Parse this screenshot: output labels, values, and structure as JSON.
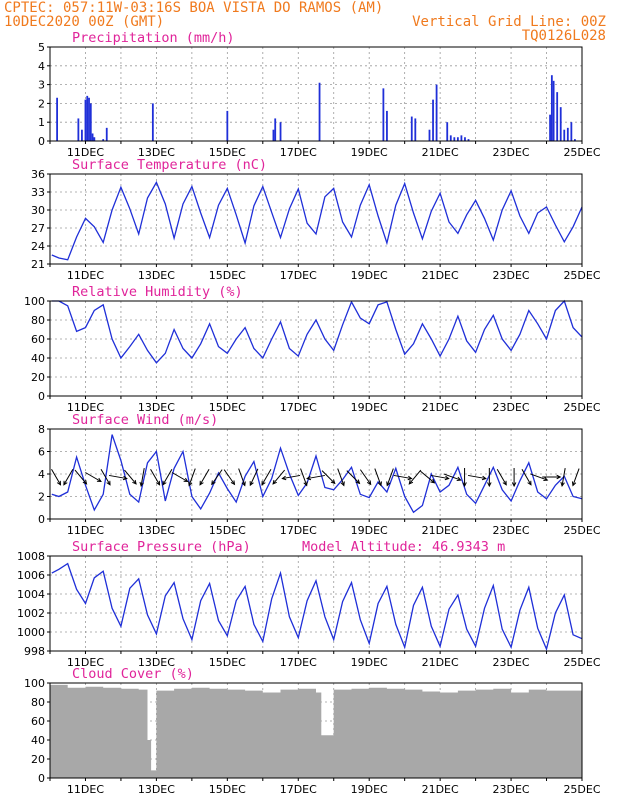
{
  "header": {
    "line1": "CPTEC:  057:11W-03:16S  BOA VISTA DO RAMOS (AM)",
    "line2_left": "10DEC2020 00Z (GMT)",
    "line2_right": "Vertical Grid Line: 00Z",
    "line3_right": "TQ0126L028"
  },
  "colors": {
    "header": "#f07a1e",
    "title": "#e0249a",
    "series": "#1f2fd8",
    "cloud": "#a8a8a8"
  },
  "chart_data": [
    {
      "type": "bar",
      "title": "Precipitation (mm/h)",
      "ylim": [
        0,
        5
      ],
      "yticks": [
        0,
        1,
        2,
        3,
        4,
        5
      ],
      "xticks": [
        "11DEC",
        "13DEC",
        "15DEC",
        "17DEC",
        "19DEC",
        "21DEC",
        "23DEC",
        "25DEC"
      ],
      "x": [
        0.2,
        0.8,
        0.9,
        1.0,
        1.05,
        1.1,
        1.15,
        1.2,
        1.25,
        1.5,
        1.6,
        2.9,
        5.0,
        6.3,
        6.35,
        6.5,
        7.6,
        9.4,
        9.5,
        10.2,
        10.3,
        10.7,
        10.8,
        10.9,
        11.2,
        11.3,
        11.4,
        11.5,
        11.6,
        11.7,
        11.8,
        14.1,
        14.15,
        14.2,
        14.3,
        14.4,
        14.5,
        14.6,
        14.7,
        14.8,
        16.6,
        17.5,
        17.7,
        17.8,
        17.9,
        18.0,
        18.3,
        18.4,
        19.0,
        19.1,
        19.2,
        19.25,
        19.3,
        19.4,
        19.6,
        19.7,
        19.9,
        20.0,
        20.1,
        20.2,
        20.3,
        20.4,
        20.5,
        20.6,
        20.7,
        20.8
      ],
      "values": [
        2.3,
        1.2,
        0.6,
        2.2,
        2.4,
        2.3,
        2.0,
        0.4,
        0.2,
        0.1,
        0.7,
        2.0,
        1.6,
        0.6,
        1.2,
        1.0,
        3.1,
        2.8,
        1.6,
        1.3,
        1.2,
        0.6,
        2.2,
        3.0,
        1.0,
        0.3,
        0.2,
        0.2,
        0.3,
        0.2,
        0.1,
        1.4,
        3.5,
        3.2,
        2.6,
        1.8,
        0.6,
        0.7,
        1.0,
        0.1,
        0.4,
        1.2,
        1.0,
        0.1,
        3.0,
        1.7,
        1.0,
        1.0,
        1.2,
        0.6,
        0.8,
        2.6,
        0.6,
        0.4,
        2.9,
        0.9,
        1.1,
        1.1,
        1.8,
        1.0,
        1.5,
        0.5,
        1.8,
        1.4,
        1.3,
        0.5
      ]
    },
    {
      "type": "line",
      "title": "Surface Temperature (nC)",
      "ylim": [
        21,
        36
      ],
      "yticks": [
        21,
        24,
        27,
        30,
        33,
        36
      ],
      "xticks": [
        "11DEC",
        "13DEC",
        "15DEC",
        "17DEC",
        "19DEC",
        "21DEC",
        "23DEC",
        "25DEC"
      ],
      "x": [
        0.05,
        0.25,
        0.5,
        0.75,
        1.0,
        1.25,
        1.5,
        1.75,
        2.0,
        2.25,
        2.5,
        2.75,
        3.0,
        3.25,
        3.5,
        3.75,
        4.0,
        4.25,
        4.5,
        4.75,
        5.0,
        5.25,
        5.5,
        5.75,
        6.0,
        6.25,
        6.5,
        6.75,
        7.0,
        7.25,
        7.5,
        7.75,
        8.0,
        8.25,
        8.5,
        8.75,
        9.0,
        9.25,
        9.5,
        9.75,
        10.0,
        10.25,
        10.5,
        10.75,
        11.0,
        11.25,
        11.5,
        11.75,
        12.0,
        12.25,
        12.5,
        12.75,
        13.0,
        13.25,
        13.5,
        13.75,
        14.0,
        14.25,
        14.5,
        14.75,
        15.0
      ],
      "y": [
        22.5,
        22.0,
        21.7,
        25.5,
        28.6,
        27.2,
        24.6,
        30.0,
        33.8,
        30.2,
        26.0,
        32.0,
        34.6,
        31.0,
        25.3,
        31.0,
        33.9,
        29.5,
        25.4,
        30.8,
        33.6,
        29.2,
        24.5,
        30.7,
        33.9,
        29.6,
        25.4,
        30.2,
        33.5,
        27.8,
        26.0,
        32.2,
        33.6,
        28.0,
        25.5,
        30.8,
        34.2,
        29.0,
        24.5,
        30.8,
        34.4,
        29.5,
        25.2,
        29.8,
        32.8,
        28.0,
        26.1,
        29.2,
        31.6,
        28.6,
        25.0,
        30.0,
        33.2,
        29.0,
        26.1,
        29.5,
        30.5,
        27.5,
        24.7,
        27.2,
        30.5
      ]
    },
    {
      "type": "line",
      "title": "Relative Humidity (%)",
      "ylim": [
        0,
        100
      ],
      "yticks": [
        0,
        20,
        40,
        60,
        80,
        100
      ],
      "xticks": [
        "11DEC",
        "13DEC",
        "15DEC",
        "17DEC",
        "19DEC",
        "21DEC",
        "23DEC",
        "25DEC"
      ],
      "x": [
        0.05,
        0.25,
        0.5,
        0.75,
        1.0,
        1.25,
        1.5,
        1.75,
        2.0,
        2.25,
        2.5,
        2.75,
        3.0,
        3.25,
        3.5,
        3.75,
        4.0,
        4.25,
        4.5,
        4.75,
        5.0,
        5.25,
        5.5,
        5.75,
        6.0,
        6.25,
        6.5,
        6.75,
        7.0,
        7.25,
        7.5,
        7.75,
        8.0,
        8.25,
        8.5,
        8.75,
        9.0,
        9.25,
        9.5,
        9.75,
        10.0,
        10.25,
        10.5,
        10.75,
        11.0,
        11.25,
        11.5,
        11.75,
        12.0,
        12.25,
        12.5,
        12.75,
        13.0,
        13.25,
        13.5,
        13.75,
        14.0,
        14.25,
        14.5,
        14.75,
        15.0
      ],
      "y": [
        100,
        100,
        95,
        68,
        72,
        90,
        96,
        60,
        40,
        52,
        65,
        48,
        35,
        45,
        70,
        50,
        40,
        55,
        76,
        52,
        45,
        60,
        72,
        50,
        40,
        60,
        78,
        50,
        42,
        65,
        80,
        60,
        48,
        75,
        99,
        82,
        76,
        96,
        99,
        70,
        44,
        55,
        76,
        60,
        42,
        60,
        84,
        58,
        46,
        70,
        85,
        60,
        48,
        65,
        90,
        76,
        60,
        90,
        100,
        72,
        62
      ]
    },
    {
      "type": "line",
      "title": "Surface Wind (m/s)",
      "ylim": [
        0,
        8
      ],
      "yticks": [
        0,
        2,
        4,
        6,
        8
      ],
      "xticks": [
        "11DEC",
        "13DEC",
        "15DEC",
        "17DEC",
        "19DEC",
        "21DEC",
        "23DEC",
        "25DEC"
      ],
      "x": [
        0.05,
        0.25,
        0.5,
        0.75,
        1.0,
        1.25,
        1.5,
        1.75,
        2.0,
        2.25,
        2.5,
        2.75,
        3.0,
        3.25,
        3.5,
        3.75,
        4.0,
        4.25,
        4.5,
        4.75,
        5.0,
        5.25,
        5.5,
        5.75,
        6.0,
        6.25,
        6.5,
        6.75,
        7.0,
        7.25,
        7.5,
        7.75,
        8.0,
        8.25,
        8.5,
        8.75,
        9.0,
        9.25,
        9.5,
        9.75,
        10.0,
        10.25,
        10.5,
        10.75,
        11.0,
        11.25,
        11.5,
        11.75,
        12.0,
        12.25,
        12.5,
        12.75,
        13.0,
        13.25,
        13.5,
        13.75,
        14.0,
        14.25,
        14.5,
        14.75,
        15.0
      ],
      "y": [
        2.2,
        2.0,
        2.4,
        5.5,
        3.0,
        0.8,
        2.2,
        7.5,
        5.2,
        2.2,
        1.5,
        5.0,
        6.0,
        1.6,
        4.5,
        6.0,
        2.0,
        0.9,
        2.3,
        4.1,
        2.7,
        1.5,
        3.8,
        5.1,
        2.0,
        3.6,
        6.3,
        4.0,
        2.1,
        3.2,
        5.6,
        2.8,
        2.6,
        3.5,
        4.6,
        2.2,
        1.9,
        3.3,
        2.4,
        4.5,
        2.0,
        0.6,
        1.2,
        4.0,
        2.4,
        3.0,
        4.6,
        2.2,
        1.4,
        3.0,
        4.6,
        2.6,
        1.6,
        3.4,
        5.0,
        2.4,
        1.8,
        3.0,
        3.8,
        2.0,
        1.8
      ]
    },
    {
      "type": "line",
      "title": "Surface Pressure (hPa)",
      "annotation": "Model Altitude: 46.9343 m",
      "ylim": [
        998,
        1008
      ],
      "yticks": [
        998,
        1000,
        1002,
        1004,
        1006,
        1008
      ],
      "xticks": [
        "11DEC",
        "13DEC",
        "15DEC",
        "17DEC",
        "19DEC",
        "21DEC",
        "23DEC",
        "25DEC"
      ],
      "x": [
        0.05,
        0.25,
        0.5,
        0.75,
        1.0,
        1.25,
        1.5,
        1.75,
        2.0,
        2.25,
        2.5,
        2.75,
        3.0,
        3.25,
        3.5,
        3.75,
        4.0,
        4.25,
        4.5,
        4.75,
        5.0,
        5.25,
        5.5,
        5.75,
        6.0,
        6.25,
        6.5,
        6.75,
        7.0,
        7.25,
        7.5,
        7.75,
        8.0,
        8.25,
        8.5,
        8.75,
        9.0,
        9.25,
        9.5,
        9.75,
        10.0,
        10.25,
        10.5,
        10.75,
        11.0,
        11.25,
        11.5,
        11.75,
        12.0,
        12.25,
        12.5,
        12.75,
        13.0,
        13.25,
        13.5,
        13.75,
        14.0,
        14.25,
        14.5,
        14.75,
        15.0
      ],
      "y": [
        1006.2,
        1006.6,
        1007.2,
        1004.5,
        1003.0,
        1005.7,
        1006.4,
        1002.5,
        1000.6,
        1004.6,
        1005.6,
        1001.8,
        999.8,
        1003.8,
        1005.2,
        1001.4,
        999.2,
        1003.3,
        1005.1,
        1001.2,
        999.6,
        1003.3,
        1004.8,
        1000.8,
        999.0,
        1003.5,
        1006.2,
        1001.6,
        999.4,
        1003.3,
        1005.4,
        1001.6,
        999.2,
        1003.2,
        1005.2,
        1001.3,
        998.8,
        1003.0,
        1004.8,
        1000.8,
        998.4,
        1002.8,
        1004.7,
        1000.6,
        998.5,
        1002.4,
        1003.9,
        1000.3,
        998.5,
        1002.5,
        1004.9,
        1000.3,
        998.4,
        1002.3,
        1004.7,
        1000.4,
        998.2,
        1002.0,
        1003.9,
        999.7,
        999.3
      ]
    },
    {
      "type": "bar",
      "title": "Cloud Cover (%)",
      "ylim": [
        0,
        100
      ],
      "yticks": [
        0,
        20,
        40,
        60,
        80,
        100
      ],
      "xticks": [
        "11DEC",
        "13DEC",
        "15DEC",
        "17DEC",
        "19DEC",
        "21DEC",
        "23DEC",
        "25DEC"
      ],
      "x": [
        0.0,
        0.5,
        1.0,
        1.5,
        2.0,
        2.5,
        2.75,
        2.85,
        3.0,
        3.5,
        4.0,
        4.5,
        5.0,
        5.5,
        6.0,
        6.5,
        7.0,
        7.5,
        7.65,
        8.0,
        8.5,
        9.0,
        9.5,
        10.0,
        10.5,
        11.0,
        11.5,
        12.0,
        12.5,
        13.0,
        13.5,
        14.0,
        14.5,
        15.0
      ],
      "values": [
        98,
        95,
        96,
        95,
        94,
        93,
        40,
        8,
        92,
        94,
        95,
        94,
        93,
        92,
        90,
        93,
        94,
        90,
        45,
        93,
        94,
        95,
        94,
        93,
        91,
        90,
        92,
        93,
        94,
        90,
        93,
        92,
        92,
        90
      ]
    }
  ],
  "wind_arrows_deg": [
    150,
    210,
    140,
    120,
    150,
    100,
    140,
    190,
    150,
    210,
    120,
    200,
    210,
    215,
    145,
    160,
    205,
    210,
    220,
    260,
    160,
    260,
    135,
    160,
    135,
    145,
    160,
    200,
    100,
    220,
    130,
    100,
    110,
    180,
    100,
    180,
    150,
    180,
    150,
    110,
    90,
    190,
    200
  ]
}
